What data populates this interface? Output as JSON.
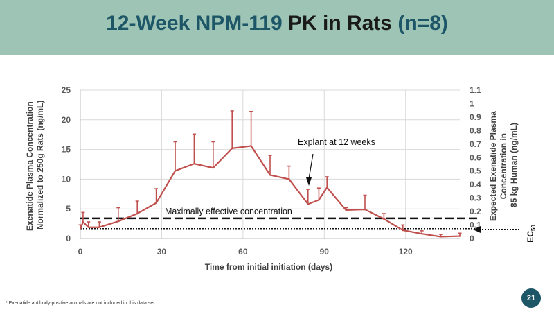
{
  "slide": {
    "title_part1": "12-Week NPM-119",
    "title_part2": "PK in Rats",
    "title_part3": "(n=8)",
    "footnote": "*   Exenatide antibody-positive animals are not included in this data set.",
    "page_number": "21"
  },
  "colors": {
    "banner": "#9ec4b6",
    "title_accent": "#1d5666",
    "series": "#c0504d"
  },
  "chart_data": {
    "type": "line",
    "xlabel": "Time from initial initiation (days)",
    "ylabel_left_line1": "Exenatide Plasma Concentration",
    "ylabel_left_line2": "Normalized to 250g Rats (ng/mL)",
    "ylabel_right_line1": "Expected Exenatide Plasma",
    "ylabel_right_line2": "Concentration in",
    "ylabel_right_line3": "85 kg Human (ng/mL)",
    "xlim": [
      0,
      140
    ],
    "ylim_left": [
      0,
      25
    ],
    "ylim_right": [
      0,
      1.1
    ],
    "x_ticks": [
      "0",
      "30",
      "60",
      "90",
      "120"
    ],
    "y_left_ticks": [
      "0",
      "5",
      "10",
      "15",
      "20",
      "25"
    ],
    "y_right_ticks": [
      "0",
      "0.1",
      "0.2",
      "0.3",
      "0.4",
      "0.5",
      "0.6",
      "0.7",
      "0.8",
      "0.9",
      "1",
      "1.1"
    ],
    "series": [
      {
        "name": "NPM-119 plasma concentration",
        "x": [
          0,
          1,
          3,
          7,
          14,
          21,
          28,
          35,
          42,
          49,
          56,
          63,
          70,
          77,
          84,
          88,
          91,
          98,
          105,
          112,
          119,
          126,
          133,
          140
        ],
        "y": [
          1.6,
          2.8,
          1.9,
          1.9,
          2.9,
          4.2,
          6.0,
          11.4,
          12.6,
          11.9,
          15.2,
          15.6,
          10.7,
          10.0,
          5.8,
          6.5,
          8.6,
          4.8,
          4.9,
          3.3,
          1.4,
          0.8,
          0.3,
          0.4
        ],
        "err_upper": [
          2.3,
          4.4,
          2.8,
          2.8,
          5.2,
          6.3,
          8.4,
          16.3,
          17.6,
          16.3,
          21.5,
          21.4,
          14.0,
          12.2,
          8.3,
          8.5,
          10.4,
          5.2,
          7.3,
          4.2,
          2.3,
          1.3,
          0.7,
          0.9
        ]
      }
    ],
    "reference_lines": [
      {
        "name": "Maximally effective concentration",
        "y": 3.4,
        "style": "dashed"
      },
      {
        "name": "EC50",
        "y": 1.6,
        "style": "dotted"
      }
    ],
    "annotations": {
      "explant": "Explant at 12 weeks",
      "mec": "Maximally effective concentration",
      "ec50_main": "EC",
      "ec50_sub": "50"
    }
  }
}
